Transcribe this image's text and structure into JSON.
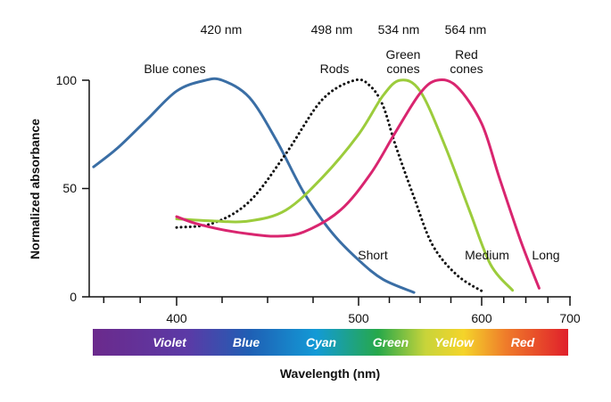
{
  "chart_data": {
    "type": "line",
    "xlabel": "Wavelength (nm)",
    "ylabel": "Normalized absorbance",
    "xlim": [
      340,
      700
    ],
    "ylim": [
      0,
      100
    ],
    "x_ticks": [
      400,
      500,
      600,
      700
    ],
    "y_ticks": [
      0,
      50,
      100
    ],
    "grid": false,
    "series": [
      {
        "name": "Blue cones",
        "color": "#3a6ea5",
        "style": "solid",
        "x": [
          343,
          360,
          380,
          400,
          415,
          425,
          440,
          455,
          470,
          485,
          500,
          520,
          545
        ],
        "y": [
          60,
          69,
          82,
          95,
          99.8,
          100,
          92,
          72,
          48,
          30,
          17,
          8,
          2
        ]
      },
      {
        "name": "Rods",
        "color": "#111111",
        "style": "dotted",
        "x": [
          400,
          420,
          440,
          460,
          480,
          498,
          510,
          520,
          530,
          545,
          560,
          580,
          603
        ],
        "y": [
          32,
          34,
          44,
          66,
          91,
          100,
          97,
          88,
          70,
          46,
          24,
          10,
          2
        ]
      },
      {
        "name": "Green cones",
        "color": "#9ccc3c",
        "style": "solid",
        "x": [
          400,
          420,
          440,
          460,
          480,
          500,
          520,
          534,
          550,
          570,
          590,
          610,
          635
        ],
        "y": [
          36,
          35,
          35,
          40,
          55,
          75,
          93,
          100,
          95,
          70,
          40,
          15,
          3
        ]
      },
      {
        "name": "Red cones",
        "color": "#d9256f",
        "style": "solid",
        "x": [
          400,
          410,
          425,
          440,
          455,
          470,
          490,
          510,
          530,
          550,
          564,
          580,
          600,
          620,
          645,
          665
        ],
        "y": [
          37,
          34,
          31,
          29,
          28,
          30,
          40,
          57,
          76,
          94,
          100,
          97,
          80,
          55,
          25,
          4
        ]
      }
    ],
    "annotations": [
      "420 nm",
      "498 nm",
      "534 nm",
      "564 nm",
      "Blue cones",
      "Rods",
      "Green cones",
      "Red cones",
      "Short",
      "Medium",
      "Long"
    ],
    "spectrum_bands": [
      "Violet",
      "Blue",
      "Cyan",
      "Green",
      "Yellow",
      "Red"
    ]
  },
  "labels": {
    "peak_blue": "420 nm",
    "peak_rods": "498 nm",
    "peak_green": "534 nm",
    "peak_red": "564 nm",
    "blue_cones": "Blue cones",
    "rods": "Rods",
    "green_line1": "Green",
    "green_line2": "cones",
    "red_line1": "Red",
    "red_line2": "cones",
    "short": "Short",
    "medium": "Medium",
    "long": "Long",
    "y100": "100",
    "y50": "50",
    "y0": "0",
    "x400": "400",
    "x500": "500",
    "x600": "600",
    "x700": "700"
  }
}
